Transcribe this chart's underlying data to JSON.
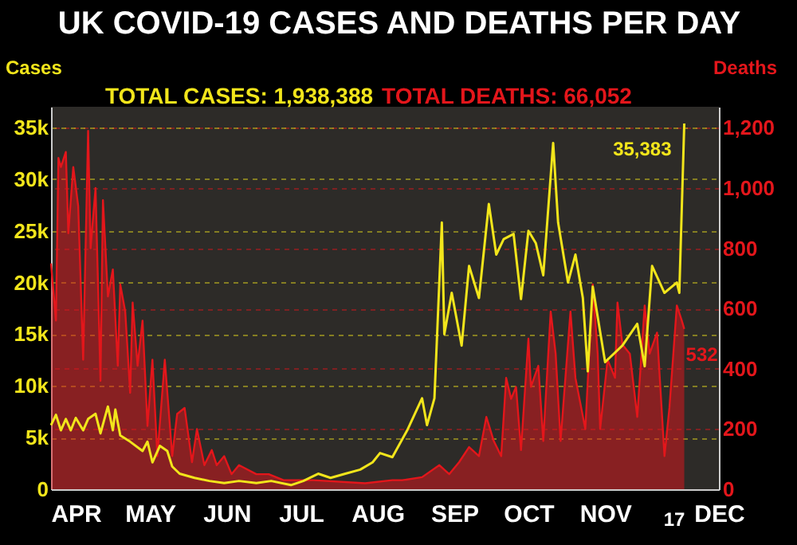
{
  "chart_data": {
    "type": "line",
    "title": "UK COVID-19 CASES AND DEATHS PER DAY",
    "ylabel": "Cases",
    "y2label": "Deaths",
    "xlim": [
      "--04-05",
      "--12-31"
    ],
    "xticks": [
      {
        "value": "--04-15",
        "label": "APR"
      },
      {
        "value": "--05-15",
        "label": "MAY"
      },
      {
        "value": "--06-15",
        "label": "JUN"
      },
      {
        "value": "--07-15",
        "label": "JUL"
      },
      {
        "value": "--08-15",
        "label": "AUG"
      },
      {
        "value": "--09-15",
        "label": "SEP"
      },
      {
        "value": "--10-15",
        "label": "OCT"
      },
      {
        "value": "--11-15",
        "label": "NOV"
      },
      {
        "value": "--12-31",
        "label": "DEC"
      }
    ],
    "ylim": [
      0,
      37000
    ],
    "yticks": [
      {
        "value": 0,
        "label": "0"
      },
      {
        "value": 5000,
        "label": "5k"
      },
      {
        "value": 10000,
        "label": "10k"
      },
      {
        "value": 15000,
        "label": "15k"
      },
      {
        "value": 20000,
        "label": "20k"
      },
      {
        "value": 25000,
        "label": "25k"
      },
      {
        "value": 30000,
        "label": "30k"
      },
      {
        "value": 35000,
        "label": "35k"
      }
    ],
    "y2lim": [
      0,
      1270
    ],
    "y2ticks": [
      {
        "value": 0,
        "label": "0"
      },
      {
        "value": 200,
        "label": "200"
      },
      {
        "value": 400,
        "label": "400"
      },
      {
        "value": 600,
        "label": "600"
      },
      {
        "value": 800,
        "label": "800"
      },
      {
        "value": 1000,
        "label": "1,000"
      },
      {
        "value": 1200,
        "label": "1,200"
      }
    ],
    "grid": true,
    "annotations": [
      "TOTAL CASES: 1,938,388",
      "TOTAL DEATHS: 66,052",
      "17"
    ],
    "series": [
      {
        "type": "area",
        "axis": "y2",
        "color": "#e3161b",
        "x": [
          "--04-05",
          "--04-07",
          "--04-08",
          "--04-09",
          "--04-11",
          "--04-12",
          "--04-14",
          "--04-16",
          "--04-18",
          "--04-20",
          "--04-21",
          "--04-23",
          "--04-25",
          "--04-26",
          "--04-28",
          "--04-30",
          "--05-02",
          "--05-03",
          "--05-05",
          "--05-07",
          "--05-08",
          "--05-10",
          "--05-12",
          "--05-14",
          "--05-16",
          "--05-18",
          "--05-21",
          "--05-24",
          "--05-26",
          "--05-29",
          "--06-01",
          "--06-03",
          "--06-06",
          "--06-09",
          "--06-11",
          "--06-14",
          "--06-17",
          "--06-20",
          "--06-27",
          "--07-02",
          "--07-08",
          "--07-20",
          "--08-10",
          "--08-21",
          "--08-25",
          "--09-02",
          "--09-09",
          "--09-13",
          "--09-17",
          "--09-21",
          "--09-25",
          "--09-28",
          "--10-01",
          "--10-04",
          "--10-06",
          "--10-08",
          "--10-10",
          "--10-12",
          "--10-15",
          "--10-16",
          "--10-19",
          "--10-21",
          "--10-24",
          "--10-26",
          "--10-28",
          "--11-01",
          "--11-03",
          "--11-07",
          "--11-10",
          "--11-12",
          "--11-13",
          "--11-16",
          "--11-19",
          "--11-20",
          "--11-22",
          "--11-25",
          "--11-28",
          "--12-01",
          "--12-03",
          "--12-06",
          "--12-09",
          "--12-11",
          "--12-14",
          "--12-16",
          "--12-17"
        ],
        "values": [
          750,
          560,
          1100,
          1070,
          1120,
          850,
          1070,
          940,
          430,
          1190,
          800,
          1000,
          360,
          960,
          640,
          730,
          410,
          680,
          590,
          320,
          620,
          410,
          560,
          210,
          430,
          110,
          430,
          110,
          250,
          270,
          90,
          200,
          80,
          130,
          80,
          110,
          50,
          80,
          50,
          50,
          30,
          30,
          20,
          30,
          30,
          40,
          80,
          50,
          90,
          140,
          110,
          240,
          160,
          110,
          370,
          300,
          340,
          130,
          500,
          340,
          410,
          160,
          590,
          450,
          160,
          590,
          370,
          200,
          680,
          450,
          200,
          430,
          370,
          620,
          480,
          450,
          240,
          610,
          450,
          520,
          110,
          270,
          610,
          560,
          532
        ],
        "value_labels": [
          null,
          null,
          null,
          null,
          null,
          null,
          null,
          null,
          null,
          null,
          null,
          null,
          null,
          null,
          null,
          null,
          null,
          null,
          null,
          null,
          null,
          null,
          null,
          null,
          null,
          null,
          null,
          null,
          null,
          null,
          null,
          null,
          null,
          null,
          null,
          null,
          null,
          null,
          null,
          null,
          null,
          null,
          null,
          null,
          null,
          null,
          null,
          null,
          null,
          null,
          null,
          null,
          null,
          null,
          null,
          null,
          null,
          null,
          null,
          null,
          null,
          null,
          null,
          null,
          null,
          null,
          null,
          null,
          null,
          null,
          null,
          null,
          null,
          null,
          null,
          null,
          null,
          null,
          null,
          null,
          null,
          null,
          null,
          null,
          "532"
        ]
      },
      {
        "type": "line",
        "color": "#f2e51b",
        "x": [
          "--04-05",
          "--04-07",
          "--04-09",
          "--04-11",
          "--04-13",
          "--04-15",
          "--04-18",
          "--04-20",
          "--04-23",
          "--04-25",
          "--04-28",
          "--04-30",
          "--05-01",
          "--05-03",
          "--05-07",
          "--05-12",
          "--05-14",
          "--05-16",
          "--05-19",
          "--05-22",
          "--05-24",
          "--05-27",
          "--06-02",
          "--06-08",
          "--06-14",
          "--06-20",
          "--06-27",
          "--07-03",
          "--07-11",
          "--07-16",
          "--07-22",
          "--07-27",
          "--08-02",
          "--08-08",
          "--08-13",
          "--08-16",
          "--08-21",
          "--08-27",
          "--09-02",
          "--09-04",
          "--09-07",
          "--09-10",
          "--09-11",
          "--09-14",
          "--09-18",
          "--09-21",
          "--09-25",
          "--09-29",
          "--10-02",
          "--10-05",
          "--10-09",
          "--10-12",
          "--10-15",
          "--10-18",
          "--10-21",
          "--10-25",
          "--10-27",
          "--10-31",
          "--11-03",
          "--11-06",
          "--11-08",
          "--11-10",
          "--11-15",
          "--11-22",
          "--11-28",
          "--12-01",
          "--12-04",
          "--12-09",
          "--12-14",
          "--12-15",
          "--12-17"
        ],
        "values": [
          6200,
          7200,
          5700,
          6800,
          5700,
          6900,
          5700,
          6800,
          7300,
          5400,
          8000,
          5700,
          7700,
          5200,
          4600,
          3700,
          4600,
          2600,
          4200,
          3700,
          2200,
          1500,
          1100,
          800,
          600,
          800,
          600,
          800,
          400,
          800,
          1500,
          1100,
          1500,
          1900,
          2600,
          3500,
          3100,
          5700,
          8800,
          6200,
          8800,
          25800,
          15000,
          19000,
          13900,
          21600,
          18500,
          27600,
          22700,
          24200,
          24700,
          18400,
          25000,
          23800,
          20700,
          33500,
          25800,
          20000,
          22700,
          18500,
          11400,
          19600,
          12300,
          13900,
          16000,
          11900,
          21600,
          19000,
          20000,
          19000,
          35383
        ],
        "value_labels": [
          null,
          null,
          null,
          null,
          null,
          null,
          null,
          null,
          null,
          null,
          null,
          null,
          null,
          null,
          null,
          null,
          null,
          null,
          null,
          null,
          null,
          null,
          null,
          null,
          null,
          null,
          null,
          null,
          null,
          null,
          null,
          null,
          null,
          null,
          null,
          null,
          null,
          null,
          null,
          null,
          null,
          null,
          null,
          null,
          null,
          null,
          null,
          null,
          null,
          null,
          null,
          null,
          null,
          null,
          null,
          null,
          null,
          null,
          null,
          null,
          null,
          null,
          null,
          null,
          null,
          null,
          null,
          null,
          null,
          null,
          "35,383"
        ]
      }
    ]
  }
}
